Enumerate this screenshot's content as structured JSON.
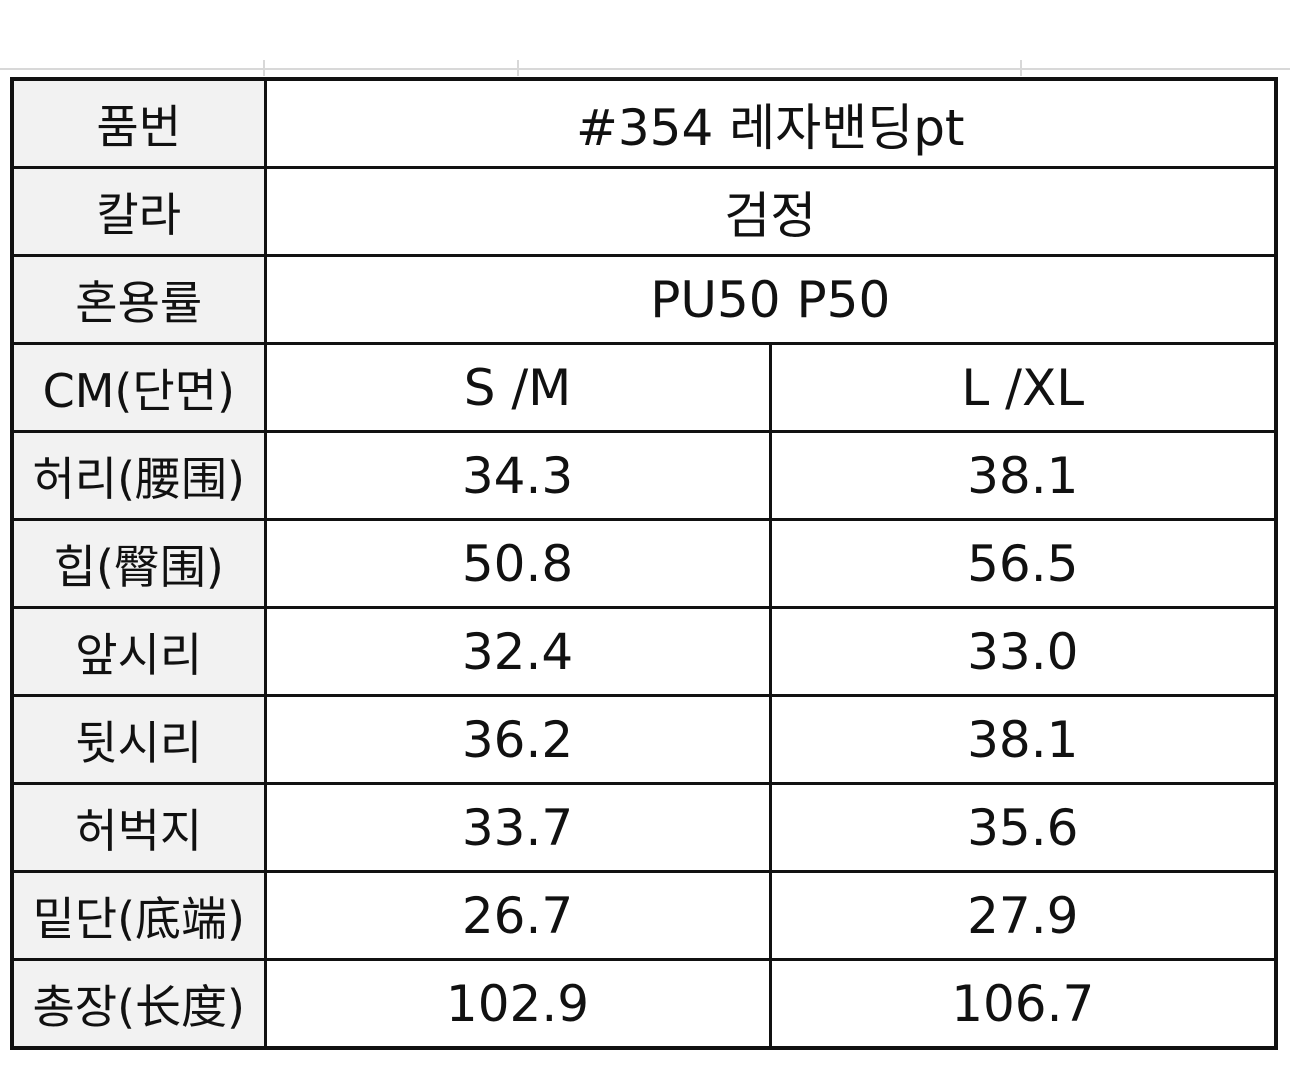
{
  "table": {
    "rows": [
      [
        "품번",
        "#354 레자밴딩pt"
      ],
      [
        "칼라",
        "검정"
      ],
      [
        "혼용률",
        "PU50 P50"
      ],
      [
        "CM(단면)",
        "S /M",
        "L /XL"
      ],
      [
        "허리(腰围)",
        "34.3",
        "38.1"
      ],
      [
        "힙(臀围)",
        "50.8",
        "56.5"
      ],
      [
        "앞시리",
        "32.4",
        "33.0"
      ],
      [
        "뒷시리",
        "36.2",
        "38.1"
      ],
      [
        "허벅지",
        "33.7",
        "35.6"
      ],
      [
        "밑단(底端)",
        "26.7",
        "27.9"
      ],
      [
        "총장(长度)",
        "102.9",
        "106.7"
      ]
    ]
  }
}
